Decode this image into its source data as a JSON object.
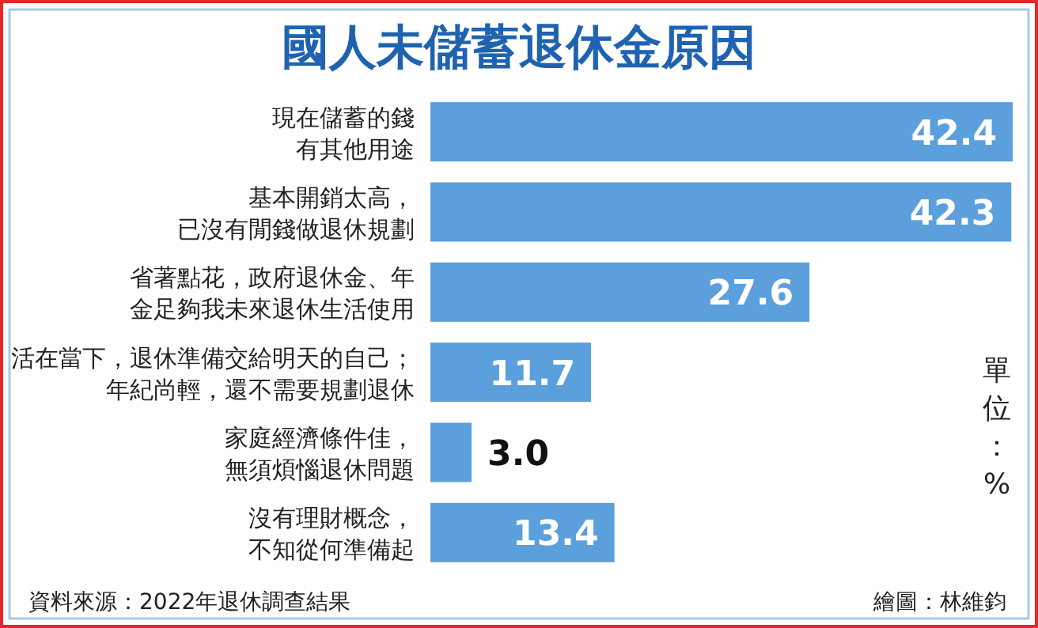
{
  "chart_data": {
    "type": "bar",
    "orientation": "horizontal",
    "title": "國人未儲蓄退休金原因",
    "categories": [
      "現在儲蓄的錢有其他用途",
      "基本開銷太高，已沒有閒錢做退休規劃",
      "省著點花，政府退休金、年金足夠我未來退休生活使用",
      "活在當下，退休準備交給明天的自己；年紀尚輕，還不需要規劃退休",
      "家庭經濟條件佳，無須煩惱退休問題",
      "沒有理財概念，不知從何準備起"
    ],
    "values": [
      42.4,
      42.3,
      27.6,
      11.7,
      3.0,
      13.4
    ],
    "value_labels": [
      "42.4",
      "42.3",
      "27.6",
      "11.7",
      "3.0",
      "13.4"
    ],
    "color": "#5b9fdc",
    "annotations": [
      "單位：%",
      "資料來源：2022年退休調查結果",
      "繪圖：林維鈞"
    ]
  }
}
